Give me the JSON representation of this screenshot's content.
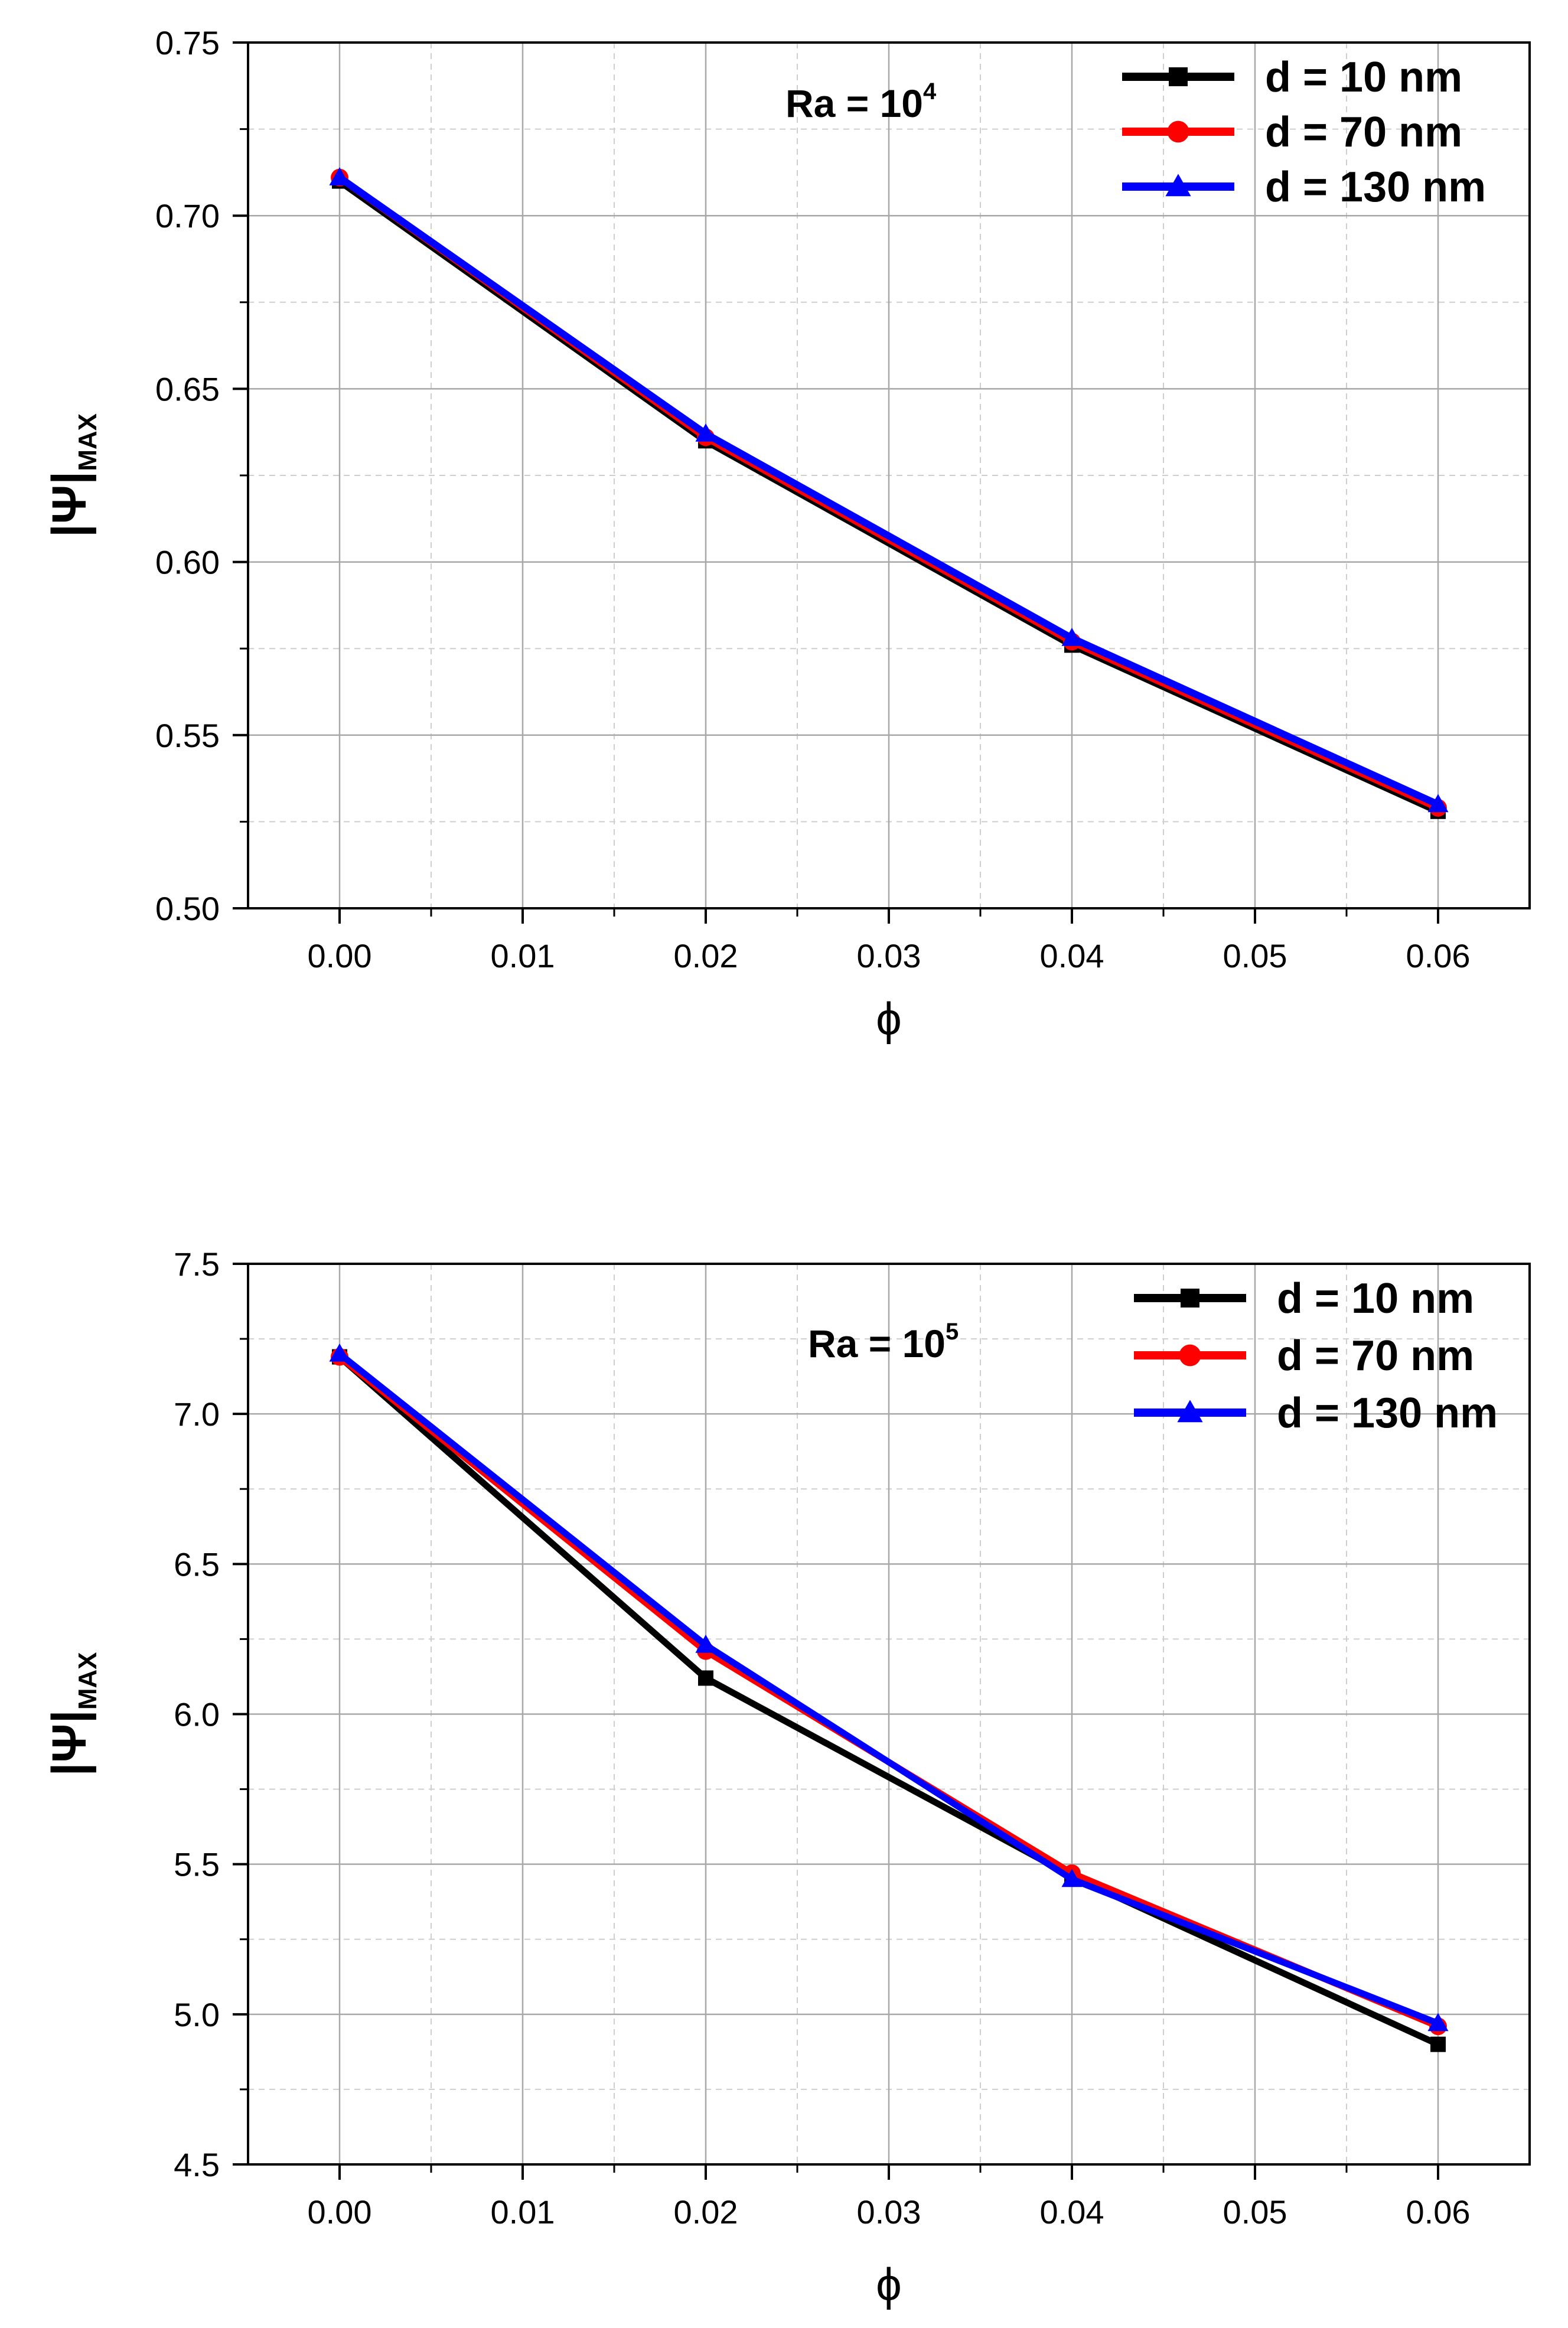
{
  "chart_data": [
    {
      "type": "line",
      "annotation": {
        "base": "Ra = 10",
        "exponent": "4"
      },
      "xlabel": "ϕ",
      "ylabel": "|Ψ|",
      "ylabel_sub": "MAX",
      "xlim": [
        -0.005,
        0.065
      ],
      "ylim": [
        0.5,
        0.75
      ],
      "x_ticks": [
        "0.00",
        "0.01",
        "0.02",
        "0.03",
        "0.04",
        "0.05",
        "0.06"
      ],
      "y_ticks": [
        "0.50",
        "0.55",
        "0.60",
        "0.65",
        "0.70",
        "0.75"
      ],
      "grid": true,
      "legend_position": "top-right",
      "x": [
        0.0,
        0.02,
        0.04,
        0.06
      ],
      "series": [
        {
          "name": "d = 10   nm",
          "color": "#000000",
          "marker": "square",
          "values": [
            0.71,
            0.635,
            0.576,
            0.528
          ]
        },
        {
          "name": "d = 70   nm",
          "color": "#ff0000",
          "marker": "circle",
          "values": [
            0.711,
            0.636,
            0.577,
            0.529
          ]
        },
        {
          "name": "d = 130 nm",
          "color": "#0000ff",
          "marker": "triangle",
          "values": [
            0.711,
            0.637,
            0.578,
            0.53
          ]
        }
      ]
    },
    {
      "type": "line",
      "annotation": {
        "base": "Ra = 10",
        "exponent": "5"
      },
      "xlabel": "ϕ",
      "ylabel": "|Ψ|",
      "ylabel_sub": "MAX",
      "xlim": [
        -0.005,
        0.065
      ],
      "ylim": [
        4.5,
        7.5
      ],
      "x_ticks": [
        "0.00",
        "0.01",
        "0.02",
        "0.03",
        "0.04",
        "0.05",
        "0.06"
      ],
      "y_ticks": [
        "4.5",
        "5.0",
        "5.5",
        "6.0",
        "6.5",
        "7.0",
        "7.5"
      ],
      "grid": true,
      "legend_position": "top-right",
      "x": [
        0.0,
        0.02,
        0.04,
        0.06
      ],
      "series": [
        {
          "name": "d = 10   nm",
          "color": "#000000",
          "marker": "square",
          "values": [
            7.19,
            6.12,
            5.46,
            4.9
          ]
        },
        {
          "name": "d = 70   nm",
          "color": "#ff0000",
          "marker": "circle",
          "values": [
            7.19,
            6.21,
            5.47,
            4.96
          ]
        },
        {
          "name": "d = 130 nm",
          "color": "#0000ff",
          "marker": "triangle",
          "values": [
            7.2,
            6.23,
            5.45,
            4.97
          ]
        }
      ]
    }
  ]
}
